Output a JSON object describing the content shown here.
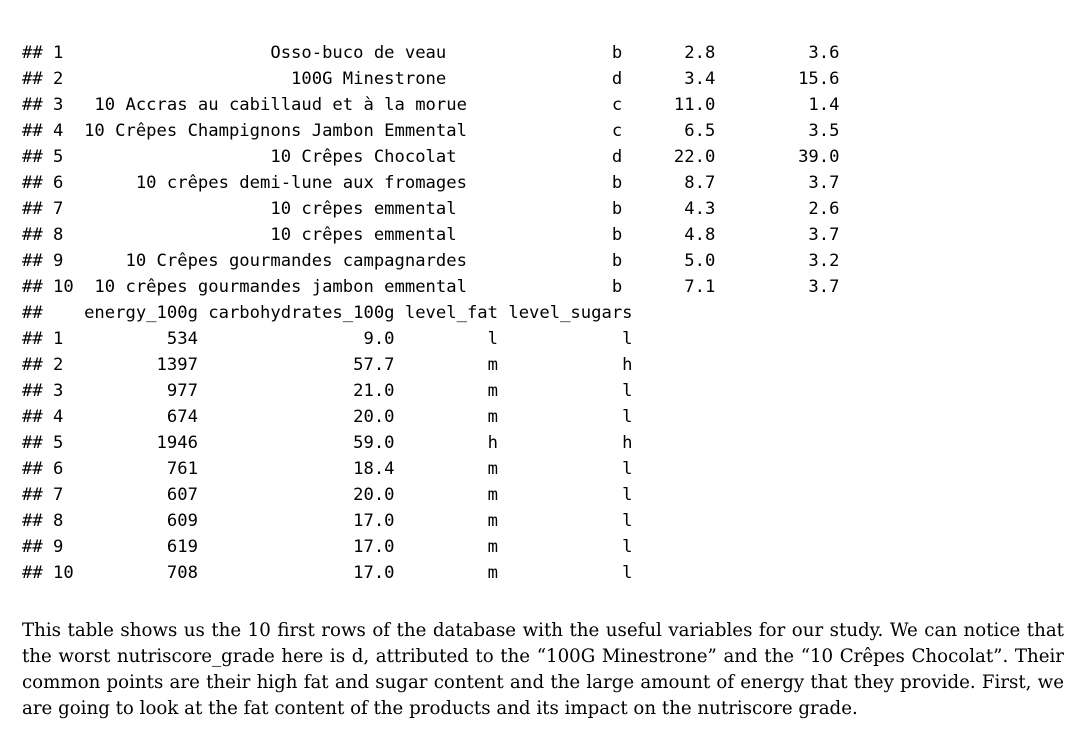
{
  "code_output": {
    "lines": [
      "## 1                    Osso-buco de veau                b      2.8         3.6",
      "## 2                      100G Minestrone                d      3.4        15.6",
      "## 3   10 Accras au cabillaud et à la morue              c     11.0         1.4",
      "## 4  10 Crêpes Champignons Jambon Emmental              c      6.5         3.5",
      "## 5                    10 Crêpes Chocolat               d     22.0        39.0",
      "## 6       10 crêpes demi-lune aux fromages              b      8.7         3.7",
      "## 7                    10 crêpes emmental               b      4.3         2.6",
      "## 8                    10 crêpes emmental               b      4.8         3.7",
      "## 9      10 Crêpes gourmandes campagnardes              b      5.0         3.2",
      "## 10  10 crêpes gourmandes jambon emmental              b      7.1         3.7",
      "##    energy_100g carbohydrates_100g level_fat level_sugars",
      "## 1          534                9.0         l            l",
      "## 2         1397               57.7         m            h",
      "## 3          977               21.0         m            l",
      "## 4          674               20.0         m            l",
      "## 5         1946               59.0         h            h",
      "## 6          761               18.4         m            l",
      "## 7          607               20.0         m            l",
      "## 8          609               17.0         m            l",
      "## 9          619               17.0         m            l",
      "## 10         708               17.0         m            l"
    ]
  },
  "paragraph": "This table shows us the 10 first rows of the database with the useful variables for our study.  We can notice that the worst nutriscore_grade here is d, attributed to the “100G Minestrone” and the “10 Crêpes Chocolat”. Their common points are their high fat and sugar content and the large amount of energy that they provide. First, we are going to look at the fat content of the products and its impact on the nutriscore grade."
}
